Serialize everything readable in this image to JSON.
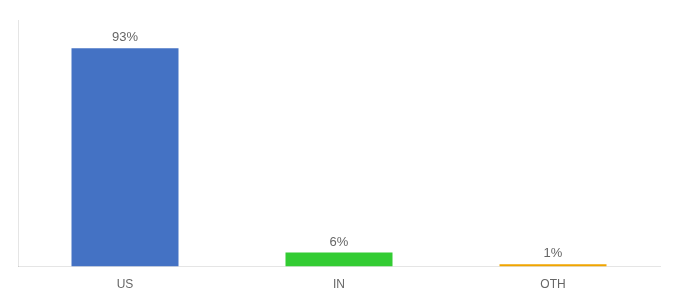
{
  "chart_data": {
    "type": "bar",
    "categories": [
      "US",
      "IN",
      "OTH"
    ],
    "values": [
      93,
      6,
      1
    ],
    "value_labels": [
      "93%",
      "6%",
      "1%"
    ],
    "colors": [
      "#4472c4",
      "#33cc33",
      "#f0a500"
    ],
    "data_labels": true,
    "ylim": [
      0,
      105
    ],
    "tick_labels": "x",
    "grid": false
  }
}
